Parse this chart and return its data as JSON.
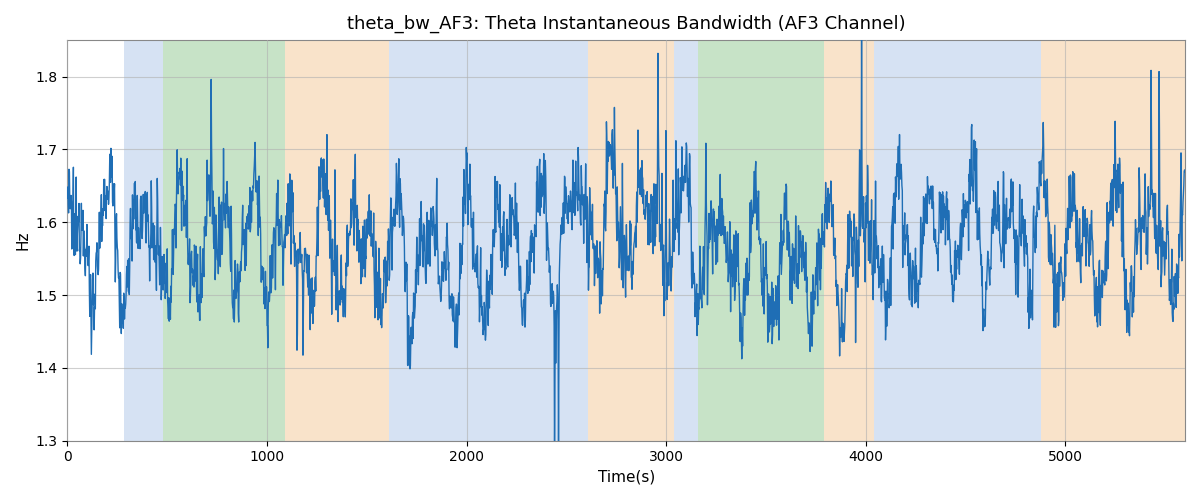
{
  "title": "theta_bw_AF3: Theta Instantaneous Bandwidth (AF3 Channel)",
  "xlabel": "Time(s)",
  "ylabel": "Hz",
  "xlim": [
    0,
    5600
  ],
  "ylim": [
    1.3,
    1.85
  ],
  "yticks": [
    1.3,
    1.4,
    1.5,
    1.6,
    1.7,
    1.8
  ],
  "line_color": "#1f6eb5",
  "line_width": 1.0,
  "bands": [
    {
      "xmin": 285,
      "xmax": 480,
      "color": "#aec6e8",
      "alpha": 0.5
    },
    {
      "xmin": 480,
      "xmax": 1090,
      "color": "#90c990",
      "alpha": 0.5
    },
    {
      "xmin": 1090,
      "xmax": 1610,
      "color": "#f5c897",
      "alpha": 0.5
    },
    {
      "xmin": 1610,
      "xmax": 1730,
      "color": "#aec6e8",
      "alpha": 0.5
    },
    {
      "xmin": 1730,
      "xmax": 2610,
      "color": "#aec6e8",
      "alpha": 0.5
    },
    {
      "xmin": 2610,
      "xmax": 3040,
      "color": "#f5c897",
      "alpha": 0.5
    },
    {
      "xmin": 3040,
      "xmax": 3160,
      "color": "#aec6e8",
      "alpha": 0.5
    },
    {
      "xmin": 3160,
      "xmax": 3790,
      "color": "#90c990",
      "alpha": 0.5
    },
    {
      "xmin": 3790,
      "xmax": 4040,
      "color": "#f5c897",
      "alpha": 0.5
    },
    {
      "xmin": 4040,
      "xmax": 4880,
      "color": "#aec6e8",
      "alpha": 0.5
    },
    {
      "xmin": 4880,
      "xmax": 5600,
      "color": "#f5c897",
      "alpha": 0.5
    }
  ],
  "grid_color": "#b0b0b0",
  "grid_alpha": 0.6,
  "seed": 12345
}
